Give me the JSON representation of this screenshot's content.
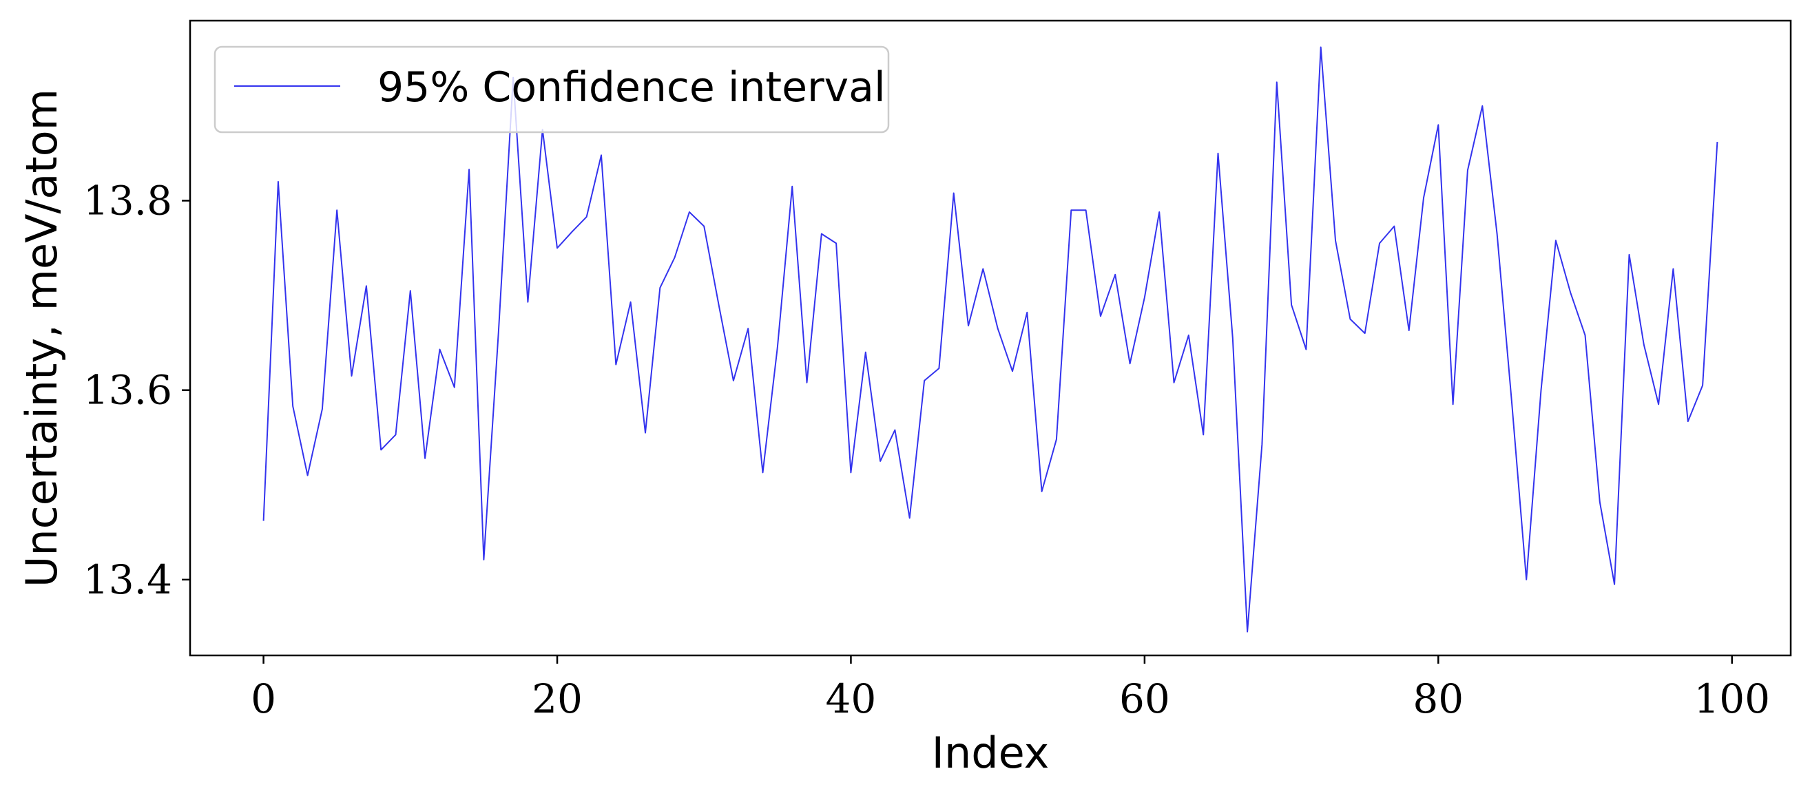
{
  "chart_data": {
    "type": "line",
    "xlabel": "Index",
    "ylabel": "Uncertainty, meV/atom",
    "xlim": [
      -5,
      104
    ],
    "ylim": [
      13.32,
      13.99
    ],
    "xticks": [
      0,
      20,
      40,
      60,
      80,
      100
    ],
    "yticks": [
      13.4,
      13.6,
      13.8
    ],
    "xtick_labels": [
      "0",
      "20",
      "40",
      "60",
      "80",
      "100"
    ],
    "ytick_labels": [
      "13.4",
      "13.6",
      "13.8"
    ],
    "grid": false,
    "legend_position": "upper-left",
    "series": [
      {
        "name": "95% Confidence interval",
        "color": "#3333ee",
        "x": [
          0,
          1,
          2,
          3,
          4,
          5,
          6,
          7,
          8,
          9,
          10,
          11,
          12,
          13,
          14,
          15,
          16,
          17,
          18,
          19,
          20,
          21,
          22,
          23,
          24,
          25,
          26,
          27,
          28,
          29,
          30,
          31,
          32,
          33,
          34,
          35,
          36,
          37,
          38,
          39,
          40,
          41,
          42,
          43,
          44,
          45,
          46,
          47,
          48,
          49,
          50,
          51,
          52,
          53,
          54,
          55,
          56,
          57,
          58,
          59,
          60,
          61,
          62,
          63,
          64,
          65,
          66,
          67,
          68,
          69,
          70,
          71,
          72,
          73,
          74,
          75,
          76,
          77,
          78,
          79,
          80,
          81,
          82,
          83,
          84,
          85,
          86,
          87,
          88,
          89,
          90,
          91,
          92,
          93,
          94,
          95,
          96,
          97,
          98,
          99
        ],
        "values": [
          13.462,
          13.82,
          13.583,
          13.51,
          13.58,
          13.79,
          13.615,
          13.71,
          13.537,
          13.553,
          13.705,
          13.528,
          13.643,
          13.603,
          13.833,
          13.421,
          13.66,
          13.93,
          13.693,
          13.875,
          13.75,
          13.767,
          13.783,
          13.848,
          13.627,
          13.693,
          13.555,
          13.708,
          13.74,
          13.788,
          13.773,
          13.69,
          13.61,
          13.665,
          13.513,
          13.645,
          13.815,
          13.608,
          13.765,
          13.755,
          13.513,
          13.64,
          13.525,
          13.558,
          13.465,
          13.61,
          13.623,
          13.808,
          13.668,
          13.728,
          13.665,
          13.62,
          13.682,
          13.493,
          13.548,
          13.79,
          13.79,
          13.678,
          13.722,
          13.628,
          13.698,
          13.788,
          13.608,
          13.658,
          13.553,
          13.85,
          13.655,
          13.345,
          13.543,
          13.925,
          13.69,
          13.643,
          13.962,
          13.758,
          13.675,
          13.66,
          13.755,
          13.773,
          13.663,
          13.803,
          13.88,
          13.585,
          13.832,
          13.9,
          13.765,
          13.588,
          13.4,
          13.6,
          13.758,
          13.703,
          13.658,
          13.482,
          13.395,
          13.743,
          13.648,
          13.585,
          13.728,
          13.567,
          13.605,
          13.862
        ]
      }
    ]
  }
}
